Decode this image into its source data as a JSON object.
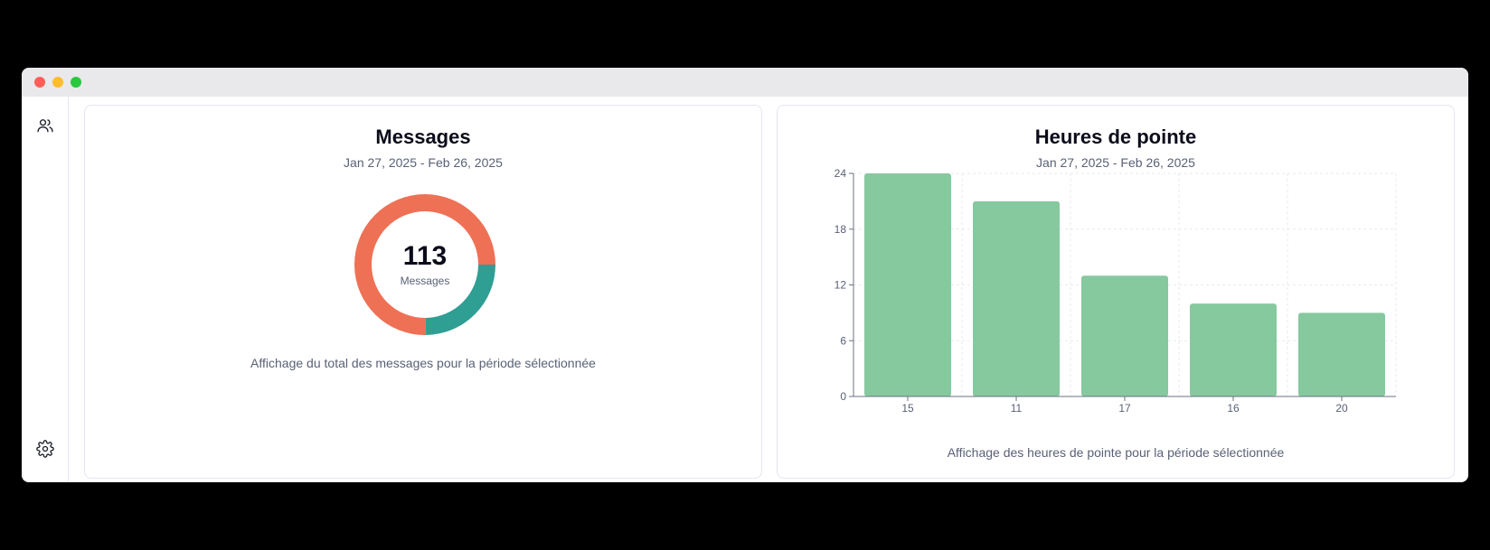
{
  "window": {
    "controls": [
      "close",
      "minimize",
      "maximize"
    ]
  },
  "sidebar": {
    "items": [
      {
        "icon": "users-icon"
      },
      {
        "icon": "gear-icon"
      }
    ]
  },
  "messages_card": {
    "title": "Messages",
    "date_range": "Jan 27, 2025 - Feb 26, 2025",
    "total_value": "113",
    "total_label": "Messages",
    "footer": "Affichage du total des messages pour la période sélectionnée"
  },
  "peak_card": {
    "title": "Heures de pointe",
    "date_range": "Jan 27, 2025 - Feb 26, 2025",
    "footer": "Affichage des heures de pointe pour la période sélectionnée"
  },
  "chart_data": [
    {
      "type": "pie",
      "title": "Messages",
      "total": 113,
      "slices": [
        {
          "value": 85,
          "color": "#ee7155"
        },
        {
          "value": 28,
          "color": "#2f9e93"
        }
      ]
    },
    {
      "type": "bar",
      "title": "Heures de pointe",
      "categories": [
        "15",
        "11",
        "17",
        "16",
        "20"
      ],
      "values": [
        24,
        21,
        13,
        10,
        9
      ],
      "ylim": [
        0,
        24
      ],
      "yticks": [
        "0",
        "6",
        "12",
        "18",
        "24"
      ],
      "grid": true,
      "color": "#86c99f"
    }
  ]
}
